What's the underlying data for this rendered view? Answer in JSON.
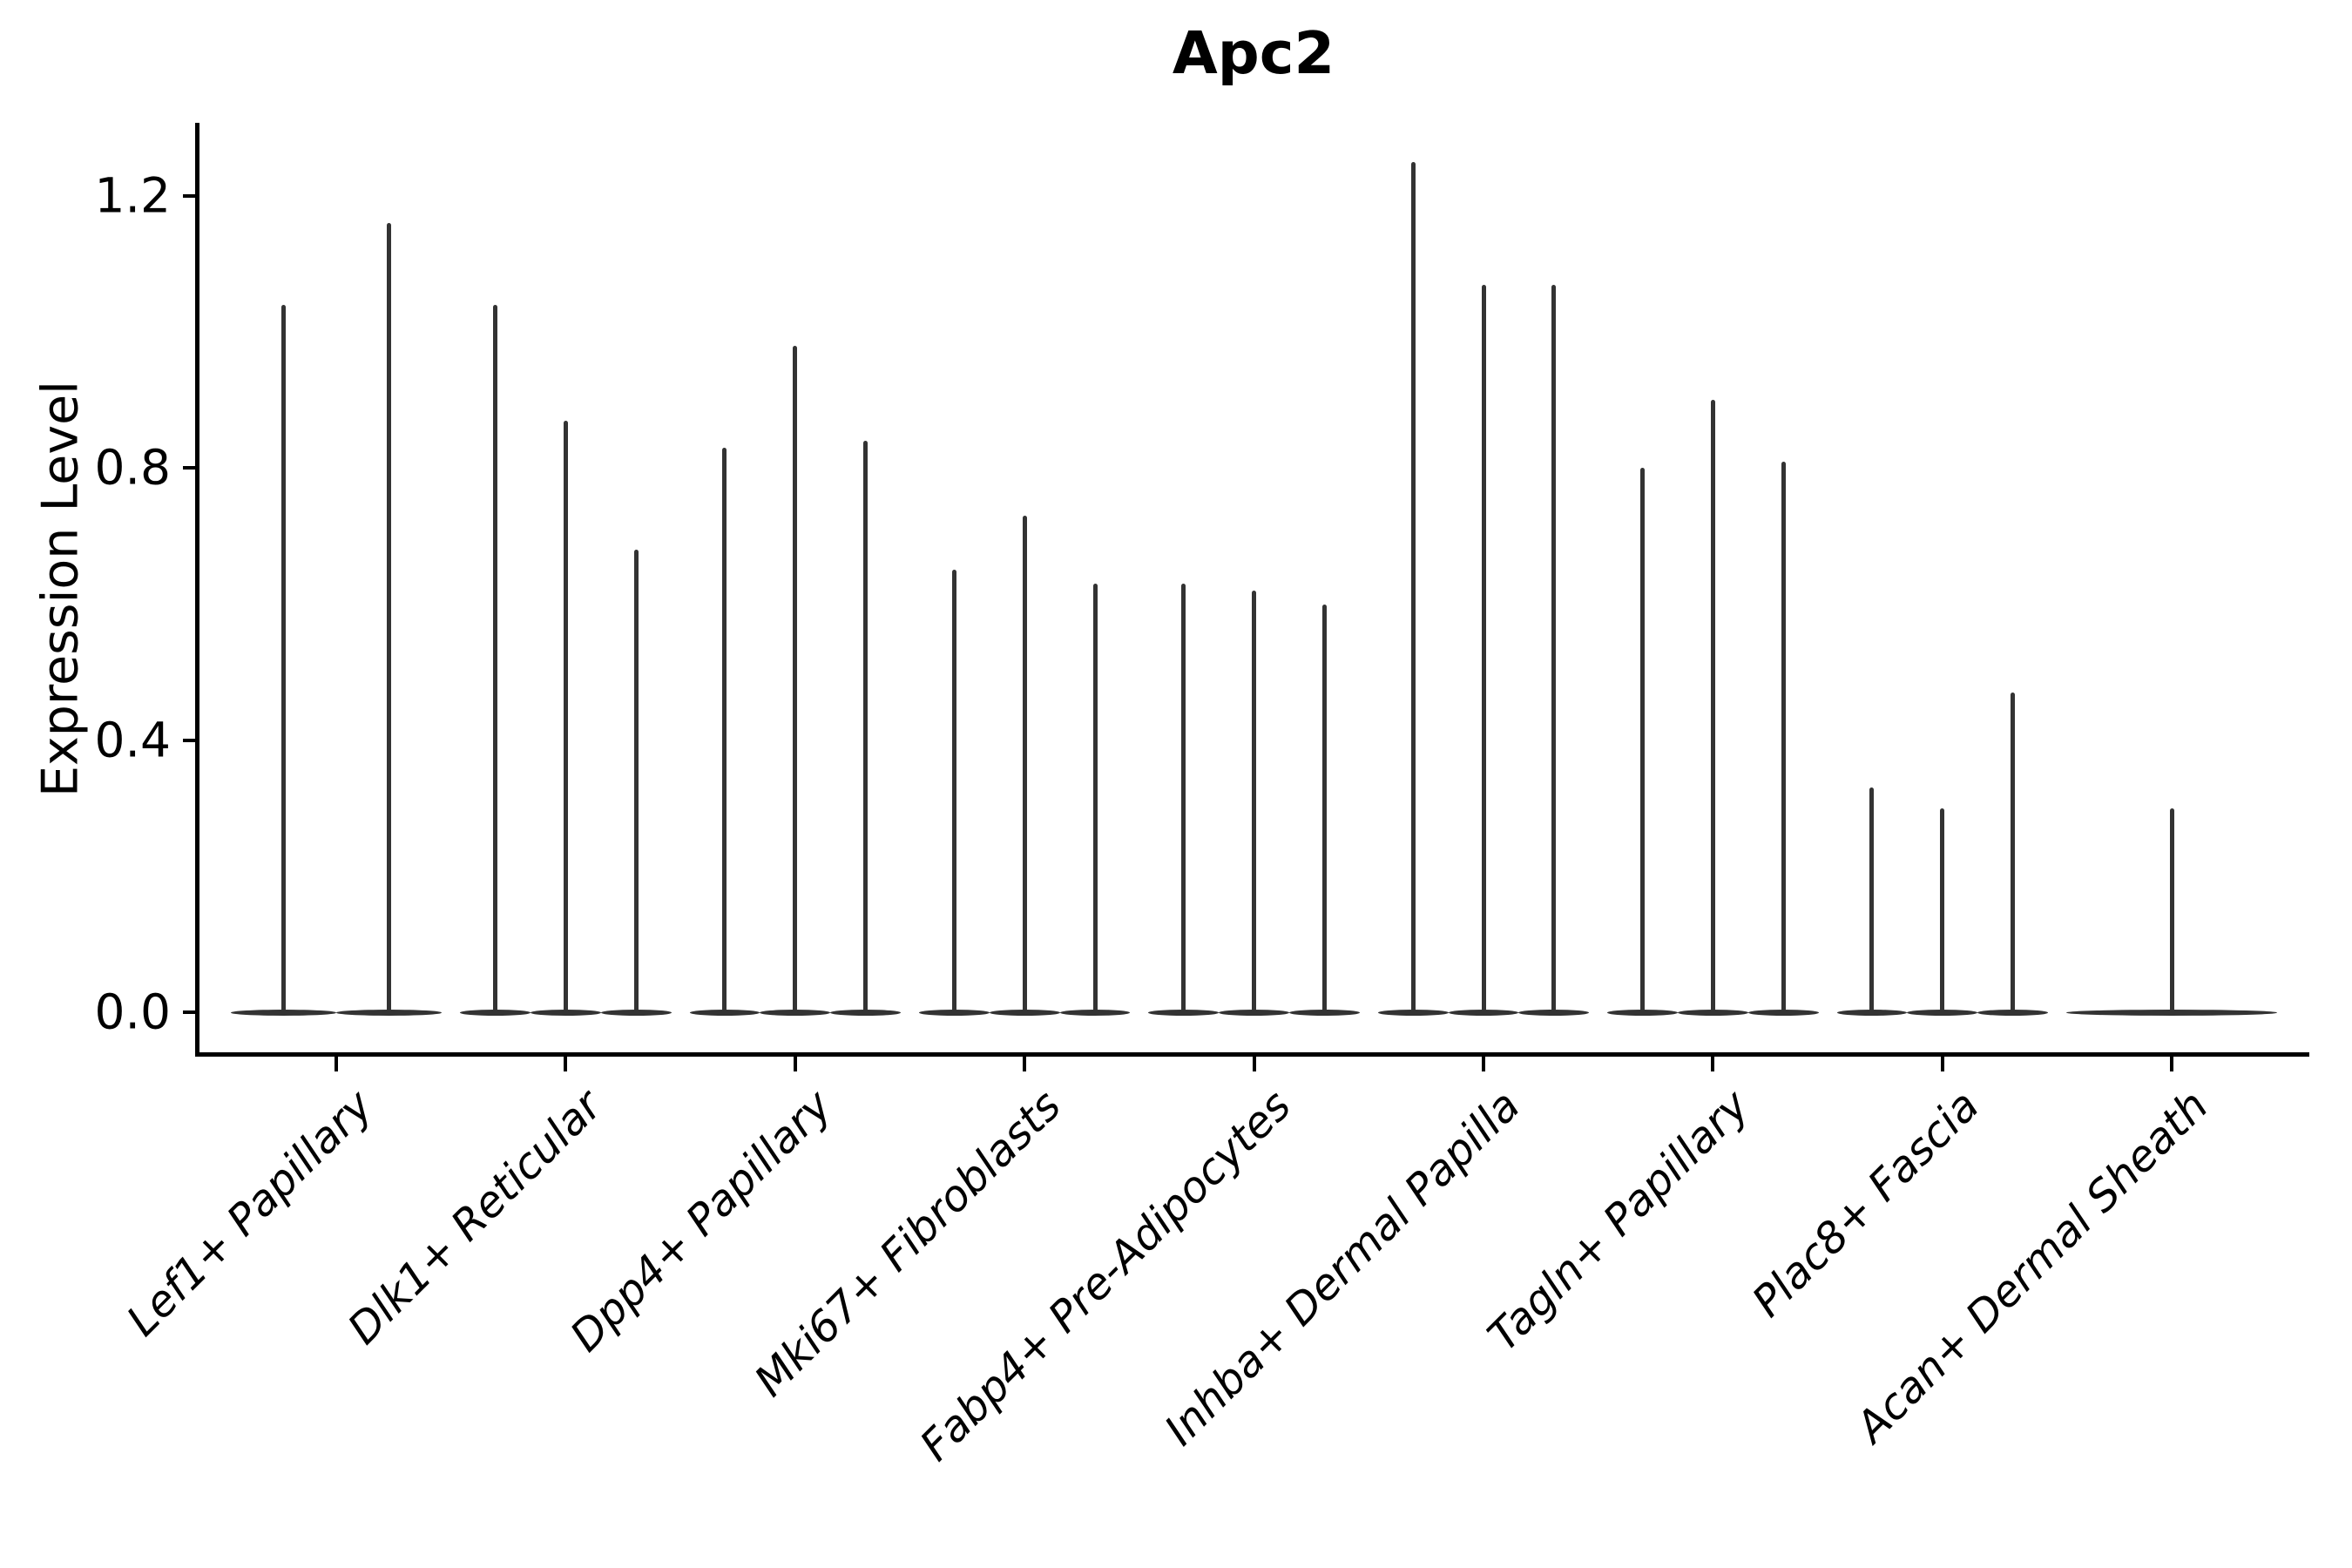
{
  "figure": {
    "title": "Apc2",
    "y_axis": {
      "label": "Expression Level",
      "tick_labels": [
        "0.0",
        "0.4",
        "0.8",
        "1.2"
      ]
    }
  },
  "chart_data": {
    "type": "violin",
    "title": "Apc2",
    "xlabel": "",
    "ylabel": "Expression Level",
    "yticks": [
      0.0,
      0.4,
      0.8,
      1.2
    ],
    "ytick_labels": [
      "0.0",
      "0.4",
      "0.8",
      "1.2"
    ],
    "ylim": [
      -0.06,
      1.31
    ],
    "grid": false,
    "legend": null,
    "xticklabel_rotation": 45,
    "categories": [
      "Lef1+ Papillary",
      "Dlk1+ Reticular",
      "Dpp4+ Papillary",
      "Mki67+ Fibroblasts",
      "Fabp4+ Pre-Adipocytes",
      "Inhba+ Dermal Papilla",
      "Tagln+ Papillary",
      "Plac8+ Fascia",
      "Acan+ Dermal Sheath"
    ],
    "groups": [
      {
        "category": "Lef1+ Papillary",
        "violin_max_values": [
          1.04,
          1.16
        ]
      },
      {
        "category": "Dlk1+ Reticular",
        "violin_max_values": [
          1.04,
          0.87,
          0.68
        ]
      },
      {
        "category": "Dpp4+ Papillary",
        "violin_max_values": [
          0.83,
          0.98,
          0.84
        ]
      },
      {
        "category": "Mki67+ Fibroblasts",
        "violin_max_values": [
          0.65,
          0.73,
          0.63
        ]
      },
      {
        "category": "Fabp4+ Pre-Adipocytes",
        "violin_max_values": [
          0.63,
          0.62,
          0.6
        ]
      },
      {
        "category": "Inhba+ Dermal Papilla",
        "violin_max_values": [
          1.25,
          1.07,
          1.07
        ]
      },
      {
        "category": "Tagln+ Papillary",
        "violin_max_values": [
          0.8,
          0.9,
          0.81
        ]
      },
      {
        "category": "Plac8+ Fascia",
        "violin_max_values": [
          0.33,
          0.3,
          0.47
        ]
      },
      {
        "category": "Acan+ Dermal Sheath",
        "violin_max_values": [
          0.3
        ]
      }
    ],
    "violin_baseline_value": 0.0,
    "colors": {
      "violin_line": "#333333",
      "axis": "#000000",
      "text": "#000000",
      "background": "#ffffff"
    }
  }
}
